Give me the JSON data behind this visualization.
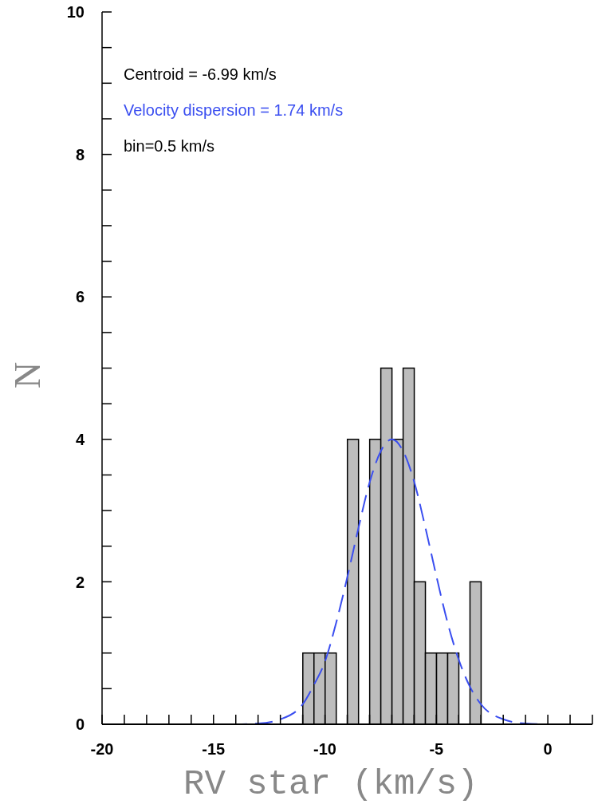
{
  "chart_data": {
    "type": "histogram",
    "xlabel": "RV star (km/s)",
    "ylabel": "N",
    "bins": [
      -11,
      -10.5,
      -10,
      -9.5,
      -9,
      -8.5,
      -8,
      -7.5,
      -7,
      -6.5,
      -6,
      -5.5,
      -5,
      -4.5,
      -4,
      -3.5,
      -3
    ],
    "values": [
      1,
      1,
      1,
      0,
      4,
      0,
      4,
      5,
      4,
      5,
      2,
      1,
      1,
      1,
      0,
      2
    ],
    "color": "#bdbdbd",
    "series": [
      {
        "type": "line",
        "name": "Velocity dispersion = 1.74 km/s",
        "color": "#3a4ef0",
        "line_style": "dashed",
        "x": [
          -20,
          -14,
          -13,
          -12,
          -11,
          -10.5,
          -10,
          -9.5,
          -9,
          -8.5,
          -8,
          -7.5,
          -7,
          -6.5,
          -6,
          -5.5,
          -5,
          -4.5,
          -4,
          -3.5,
          -3,
          -2,
          -1,
          0,
          2
        ],
        "values": [
          0,
          0,
          0.01,
          0.07,
          0.28,
          0.55,
          0.88,
          1.42,
          2.06,
          2.75,
          3.39,
          3.83,
          4,
          3.84,
          3.41,
          2.77,
          2.08,
          1.43,
          0.91,
          0.53,
          0.28,
          0.07,
          0.01,
          0,
          0
        ]
      }
    ],
    "annotations": [
      "Centroid = -6.99 km/s",
      "bin=0.5 km/s"
    ],
    "xlim": [
      -20,
      2
    ],
    "xticks": [
      -20,
      {
        "value": -19,
        "label": null
      },
      {
        "value": -18,
        "label": null
      },
      {
        "value": -17,
        "label": null
      },
      {
        "value": -16,
        "label": null
      },
      -15,
      {
        "value": -14,
        "label": null
      },
      {
        "value": -13,
        "label": null
      },
      {
        "value": -12,
        "label": null
      },
      {
        "value": -11,
        "label": null
      },
      -10,
      {
        "value": -9,
        "label": null
      },
      {
        "value": -8,
        "label": null
      },
      {
        "value": -7,
        "label": null
      },
      {
        "value": -6,
        "label": null
      },
      -5,
      {
        "value": -4,
        "label": null
      },
      {
        "value": -3,
        "label": null
      },
      {
        "value": -2,
        "label": null
      },
      {
        "value": -1,
        "label": null
      },
      0,
      {
        "value": 1,
        "label": null
      },
      {
        "value": 2,
        "label": null
      }
    ],
    "ylim": [
      0,
      10
    ],
    "yticks": [
      0,
      {
        "value": 0.5,
        "label": null
      },
      {
        "value": 1,
        "label": null
      },
      {
        "value": 1.5,
        "label": null
      },
      2,
      {
        "value": 2.5,
        "label": null
      },
      {
        "value": 3,
        "label": null
      },
      {
        "value": 3.5,
        "label": null
      },
      4,
      {
        "value": 4.5,
        "label": null
      },
      {
        "value": 5,
        "label": null
      },
      {
        "value": 5.5,
        "label": null
      },
      6,
      {
        "value": 6.5,
        "label": null
      },
      {
        "value": 7,
        "label": null
      },
      {
        "value": 7.5,
        "label": null
      },
      8,
      {
        "value": 8.5,
        "label": null
      },
      {
        "value": 9,
        "label": null
      },
      {
        "value": 9.5,
        "label": null
      },
      10
    ],
    "tick_labels": [
      "x",
      "y"
    ]
  }
}
